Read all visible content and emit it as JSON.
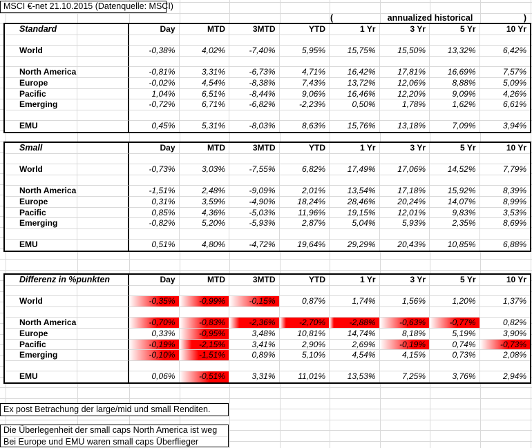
{
  "sheet_title": "MSCI €-net 21.10.2015 (Datenquelle: MSCI)",
  "annualized_header": {
    "open": "(",
    "label": "annualized historical",
    "close": ")"
  },
  "period_columns": [
    "Day",
    "MTD",
    "3MTD",
    "YTD",
    "1 Yr",
    "3 Yr",
    "5 Yr",
    "10 Yr"
  ],
  "tables": [
    {
      "title": "Standard",
      "highlight_negative": false,
      "rows": [
        {
          "label": "World",
          "values": [
            "-0,38%",
            "4,02%",
            "-7,40%",
            "5,95%",
            "15,75%",
            "15,50%",
            "13,32%",
            "6,42%"
          ]
        },
        {
          "label": "North America",
          "values": [
            "-0,81%",
            "3,31%",
            "-6,73%",
            "4,71%",
            "16,42%",
            "17,81%",
            "16,69%",
            "7,57%"
          ]
        },
        {
          "label": "Europe",
          "values": [
            "-0,02%",
            "4,54%",
            "-8,38%",
            "7,43%",
            "13,72%",
            "12,06%",
            "8,88%",
            "5,09%"
          ]
        },
        {
          "label": "Pacific",
          "values": [
            "1,04%",
            "6,51%",
            "-8,44%",
            "9,06%",
            "16,46%",
            "12,20%",
            "9,09%",
            "4,26%"
          ]
        },
        {
          "label": "Emerging",
          "values": [
            "-0,72%",
            "6,71%",
            "-6,82%",
            "-2,23%",
            "0,50%",
            "1,78%",
            "1,62%",
            "6,61%"
          ]
        },
        {
          "label": "EMU",
          "values": [
            "0,45%",
            "5,31%",
            "-8,03%",
            "8,63%",
            "15,76%",
            "13,18%",
            "7,09%",
            "3,94%"
          ]
        }
      ]
    },
    {
      "title": "Small",
      "highlight_negative": false,
      "rows": [
        {
          "label": "World",
          "values": [
            "-0,73%",
            "3,03%",
            "-7,55%",
            "6,82%",
            "17,49%",
            "17,06%",
            "14,52%",
            "7,79%"
          ]
        },
        {
          "label": "North America",
          "values": [
            "-1,51%",
            "2,48%",
            "-9,09%",
            "2,01%",
            "13,54%",
            "17,18%",
            "15,92%",
            "8,39%"
          ]
        },
        {
          "label": "Europe",
          "values": [
            "0,31%",
            "3,59%",
            "-4,90%",
            "18,24%",
            "28,46%",
            "20,24%",
            "14,07%",
            "8,99%"
          ]
        },
        {
          "label": "Pacific",
          "values": [
            "0,85%",
            "4,36%",
            "-5,03%",
            "11,96%",
            "19,15%",
            "12,01%",
            "9,83%",
            "3,53%"
          ]
        },
        {
          "label": "Emerging",
          "values": [
            "-0,82%",
            "5,20%",
            "-5,93%",
            "2,87%",
            "5,04%",
            "5,93%",
            "2,35%",
            "8,69%"
          ]
        },
        {
          "label": "EMU",
          "values": [
            "0,51%",
            "4,80%",
            "-4,72%",
            "19,64%",
            "29,29%",
            "20,43%",
            "10,85%",
            "6,88%"
          ]
        }
      ]
    },
    {
      "title": "Differenz in %punkten",
      "highlight_negative": true,
      "rows": [
        {
          "label": "World",
          "values": [
            "-0,35%",
            "-0,99%",
            "-0,15%",
            "0,87%",
            "1,74%",
            "1,56%",
            "1,20%",
            "1,37%"
          ]
        },
        {
          "label": "North America",
          "values": [
            "-0,70%",
            "-0,83%",
            "-2,36%",
            "-2,70%",
            "-2,88%",
            "-0,63%",
            "-0,77%",
            "0,82%"
          ]
        },
        {
          "label": "Europe",
          "values": [
            "0,33%",
            "-0,95%",
            "3,48%",
            "10,81%",
            "14,74%",
            "8,18%",
            "5,19%",
            "3,90%"
          ]
        },
        {
          "label": "Pacific",
          "values": [
            "-0,19%",
            "-2,15%",
            "3,41%",
            "2,90%",
            "2,69%",
            "-0,19%",
            "0,74%",
            "-0,73%"
          ]
        },
        {
          "label": "Emerging",
          "values": [
            "-0,10%",
            "-1,51%",
            "0,89%",
            "5,10%",
            "4,54%",
            "4,15%",
            "0,73%",
            "2,08%"
          ]
        },
        {
          "label": "EMU",
          "values": [
            "0,06%",
            "-0,51%",
            "3,31%",
            "11,01%",
            "13,53%",
            "7,25%",
            "3,76%",
            "2,94%"
          ]
        }
      ]
    }
  ],
  "notes": [
    "Ex post Betrachung der large/mid und small Renditen.",
    "Die Überlegenheit der small caps North America ist weg",
    "Bei Europe und EMU waren small caps Überflieger"
  ],
  "colors": {
    "negative_highlight": "#ff0000",
    "gridline": "#d9d9d9",
    "border": "#000000"
  }
}
